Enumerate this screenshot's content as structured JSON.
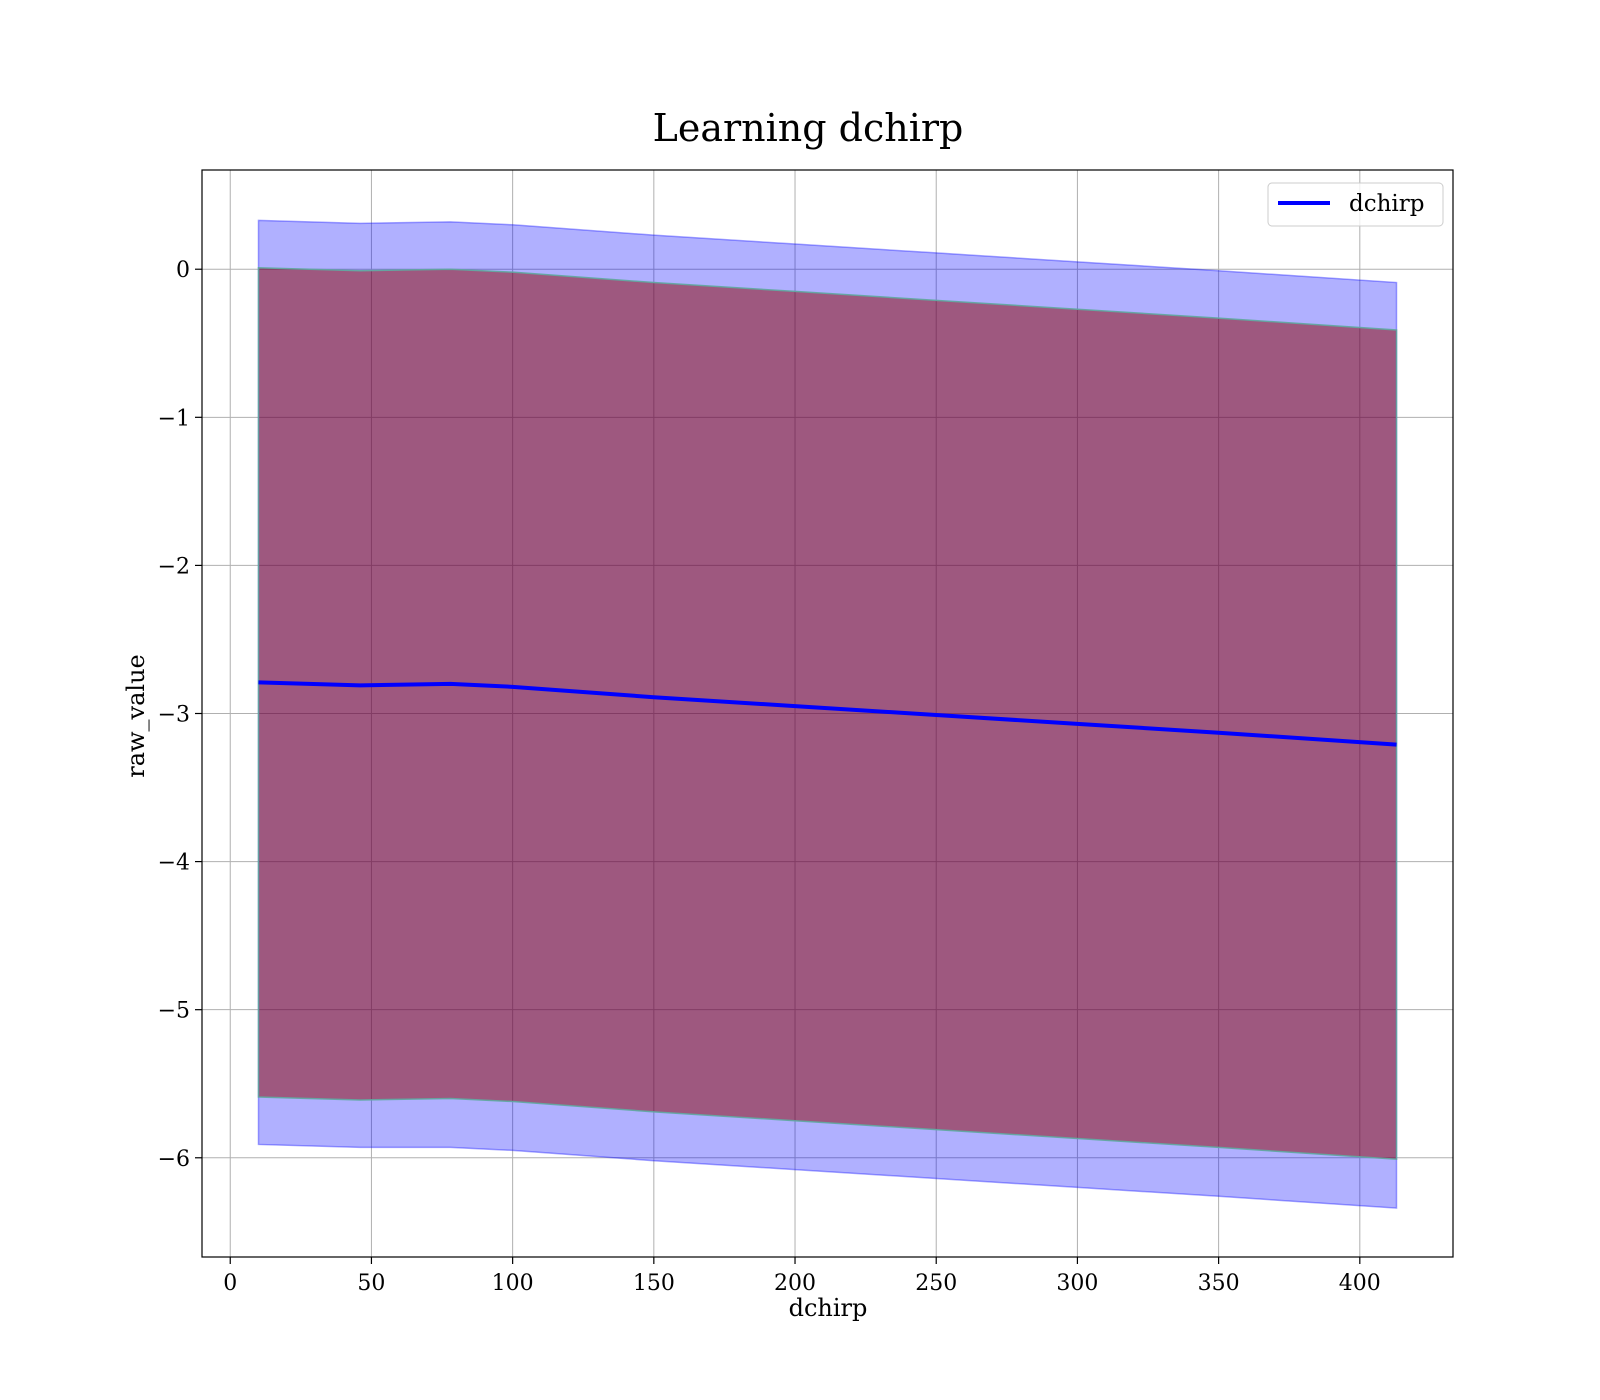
{
  "chart_data": {
    "type": "line",
    "title": "Learning dchirp",
    "xlabel": "dchirp",
    "ylabel": "raw_value",
    "xlim": [
      -10,
      433
    ],
    "ylim": [
      -6.67,
      0.67
    ],
    "xticks": [
      0,
      50,
      100,
      150,
      200,
      250,
      300,
      350,
      400
    ],
    "yticks": [
      0,
      -1,
      -2,
      -3,
      -4,
      -5,
      -6
    ],
    "xtick_labels": [
      "0",
      "50",
      "100",
      "150",
      "200",
      "250",
      "300",
      "350",
      "400"
    ],
    "ytick_labels": [
      "0",
      "−1",
      "−2",
      "−3",
      "−4",
      "−5",
      "−6"
    ],
    "grid": true,
    "legend_position": "top-right",
    "series": [
      {
        "name": "dchirp",
        "color": "#0000ff",
        "x": [
          10,
          46,
          78,
          100,
          150,
          200,
          250,
          300,
          350,
          413
        ],
        "y": [
          -2.79,
          -2.81,
          -2.8,
          -2.82,
          -2.89,
          -2.95,
          -3.01,
          -3.07,
          -3.13,
          -3.21
        ]
      }
    ],
    "bands": [
      {
        "color": "#0000ff",
        "opacity": 0.31,
        "x": [
          10,
          46,
          78,
          100,
          150,
          200,
          250,
          300,
          350,
          413
        ],
        "upper": [
          0.33,
          0.31,
          0.32,
          0.3,
          0.23,
          0.17,
          0.11,
          0.05,
          -0.01,
          -0.09
        ],
        "lower": [
          -5.91,
          -5.93,
          -5.93,
          -5.95,
          -6.02,
          -6.08,
          -6.14,
          -6.2,
          -6.26,
          -6.34
        ]
      },
      {
        "color": "#8b0000",
        "opacity": 0.5,
        "edge": "#5fa8a0",
        "x": [
          10,
          46,
          78,
          100,
          150,
          200,
          250,
          300,
          350,
          413
        ],
        "upper": [
          0.01,
          -0.01,
          0.0,
          -0.02,
          -0.09,
          -0.15,
          -0.21,
          -0.27,
          -0.33,
          -0.41
        ],
        "lower": [
          -5.59,
          -5.61,
          -5.6,
          -5.62,
          -5.69,
          -5.75,
          -5.81,
          -5.87,
          -5.93,
          -6.01
        ]
      }
    ]
  }
}
